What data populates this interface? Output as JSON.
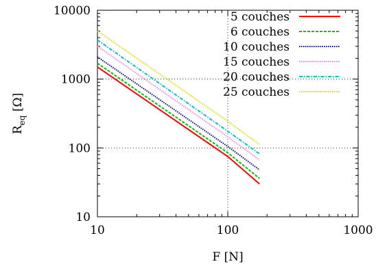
{
  "chart_data": {
    "type": "line",
    "title": "",
    "xlabel": "F [N]",
    "ylabel_main": "R",
    "ylabel_sub": "eq",
    "ylabel_unit": " [Ω]",
    "xscale": "log",
    "yscale": "log",
    "xlim": [
      10,
      1000
    ],
    "ylim": [
      10,
      10000
    ],
    "xticks": [
      {
        "value": 10,
        "label": "10"
      },
      {
        "value": 100,
        "label": "100"
      },
      {
        "value": 1000,
        "label": "1000"
      }
    ],
    "yticks": [
      {
        "value": 10,
        "label": "10"
      },
      {
        "value": 100,
        "label": "100"
      },
      {
        "value": 1000,
        "label": "1000"
      },
      {
        "value": 10000,
        "label": "10000"
      }
    ],
    "grid": true,
    "legend_position": "top-right",
    "series": [
      {
        "name": "5 couches",
        "color": "#ff0000",
        "dash": "solid",
        "x": [
          10,
          100,
          175
        ],
        "y": [
          1500,
          75,
          30
        ]
      },
      {
        "name": "6 couches",
        "color": "#00c000",
        "dash": "dashed",
        "x": [
          10,
          100,
          175
        ],
        "y": [
          1700,
          85,
          36
        ]
      },
      {
        "name": "10 couches",
        "color": "#0000a0",
        "dash": "dotted",
        "x": [
          10,
          100,
          175
        ],
        "y": [
          2100,
          105,
          48
        ]
      },
      {
        "name": "15 couches",
        "color": "#ff80ff",
        "dash": "dotted",
        "x": [
          10,
          100,
          175
        ],
        "y": [
          3000,
          145,
          67
        ]
      },
      {
        "name": "20 couches",
        "color": "#00c0c0",
        "dash": "dashdot",
        "x": [
          10,
          100,
          175
        ],
        "y": [
          3700,
          175,
          82
        ]
      },
      {
        "name": "25 couches",
        "color": "#e0e000",
        "dash": "dotted",
        "x": [
          10,
          100,
          175
        ],
        "y": [
          5000,
          245,
          112
        ]
      }
    ]
  }
}
